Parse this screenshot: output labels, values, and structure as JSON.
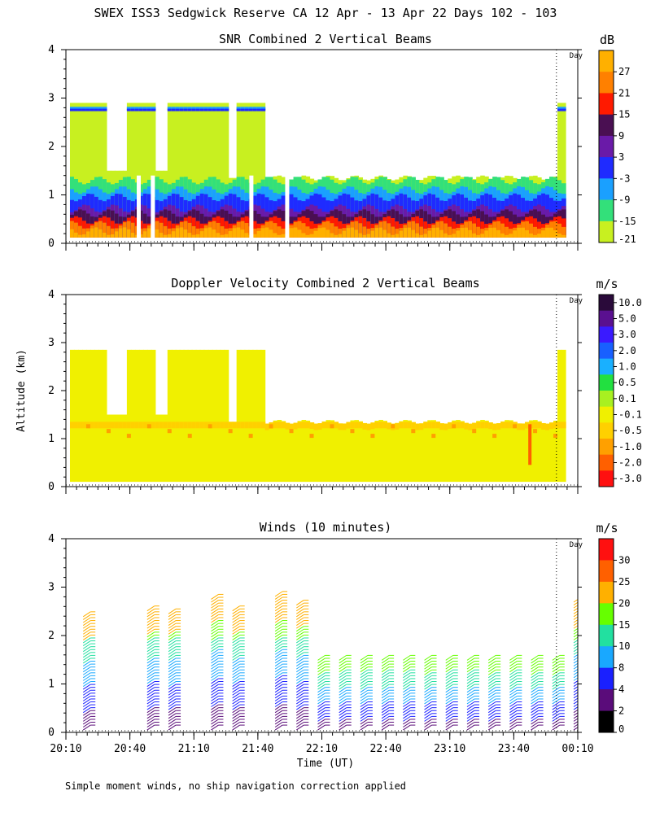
{
  "header": {
    "title": "SWEX ISS3 Sedgwick Reserve CA  12 Apr - 13 Apr 22 Days 102 - 103",
    "footnote": "Simple moment winds, no ship navigation correction applied",
    "day_marker": "Day"
  },
  "axes": {
    "ylabel": "Altitude (km)",
    "xlabel": "Time (UT)",
    "yticks": [
      "0",
      "1",
      "2",
      "3",
      "4"
    ],
    "xticks": [
      "20:10",
      "20:40",
      "21:10",
      "21:40",
      "22:10",
      "22:40",
      "23:10",
      "23:40",
      "00:10"
    ]
  },
  "chart_data": [
    {
      "type": "heatmap",
      "title": "SNR Combined 2 Vertical Beams",
      "unit": "dB",
      "ylim": [
        0,
        4
      ],
      "xlim_hours": [
        20.1667,
        24.1667
      ],
      "colorbar": {
        "labels": [
          "27",
          "21",
          "15",
          "9",
          "3",
          "-3",
          "-9",
          "-15",
          "-21"
        ],
        "colors": [
          "#ffb000",
          "#ff8000",
          "#ff1a00",
          "#4a0f52",
          "#6a1aa8",
          "#1f2bff",
          "#1aa0ff",
          "#33e07a",
          "#c8f020"
        ]
      },
      "layers": [
        {
          "label": "-21",
          "top_km": 1.45
        },
        {
          "label": "-15",
          "top_km": 1.3
        },
        {
          "label": "-9",
          "top_km": 1.1
        },
        {
          "label": "-3",
          "top_km": 0.95
        },
        {
          "label": "3",
          "top_km": 0.72
        },
        {
          "label": "9",
          "top_km": 0.62
        },
        {
          "label": "15",
          "top_km": 0.48
        },
        {
          "label": "21",
          "top_km": 0.38
        },
        {
          "label": "27",
          "top_km": 0.25
        }
      ]
    },
    {
      "type": "heatmap",
      "title": "Doppler Velocity Combined 2 Vertical Beams",
      "unit": "m/s",
      "ylim": [
        0,
        4
      ],
      "colorbar": {
        "labels": [
          "10.0",
          "5.0",
          "3.0",
          "2.0",
          "1.0",
          "0.5",
          "0.1",
          "-0.1",
          "-0.5",
          "-1.0",
          "-2.0",
          "-3.0"
        ],
        "colors": [
          "#2a0a3a",
          "#5a1090",
          "#3a1aff",
          "#1860ff",
          "#19b0ff",
          "#22e040",
          "#a8f020",
          "#f0f000",
          "#ffd000",
          "#ffa000",
          "#ff6000",
          "#ff1010"
        ]
      }
    },
    {
      "type": "wind_barbs",
      "title": "Winds (10 minutes)",
      "unit": "m/s",
      "ylim": [
        0,
        4
      ],
      "colorbar": {
        "labels": [
          "30",
          "25",
          "20",
          "15",
          "10",
          "8",
          "4",
          "2",
          "0"
        ],
        "colors": [
          "#ff1010",
          "#ff6000",
          "#ffb000",
          "#66ff00",
          "#22e0a0",
          "#19a8ff",
          "#1a20ff",
          "#5a0c7a",
          "#000000"
        ]
      },
      "profile_times": [
        "20:20",
        "20:50",
        "21:00",
        "21:20",
        "21:30",
        "21:50",
        "22:00",
        "22:10",
        "22:20",
        "22:30",
        "22:40",
        "22:50",
        "23:00",
        "23:10",
        "23:20",
        "23:30",
        "23:40",
        "23:50",
        "00:00",
        "00:10"
      ],
      "profile_tops_km": [
        2.5,
        2.65,
        2.6,
        2.9,
        2.65,
        2.95,
        2.75,
        1.6,
        1.65,
        1.65,
        1.65,
        1.65,
        1.6,
        1.65,
        1.65,
        1.6,
        1.65,
        1.6,
        1.6,
        2.8
      ]
    }
  ]
}
